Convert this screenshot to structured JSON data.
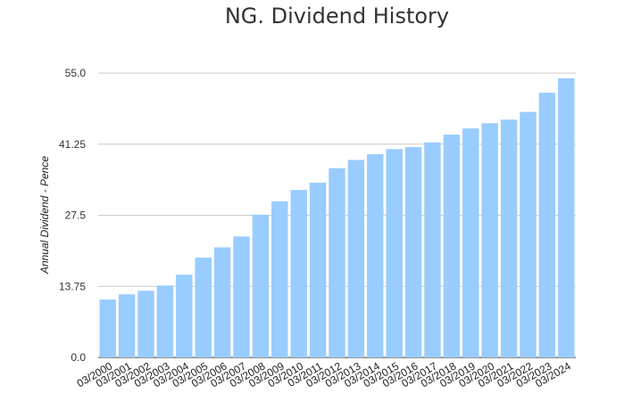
{
  "chart_data": {
    "type": "bar",
    "title": "NG. Dividend History",
    "xlabel": "",
    "ylabel": "Annual Dividend - Pence",
    "ylim": [
      0,
      55
    ],
    "yticks": [
      "0.0",
      "13.75",
      "27.5",
      "41.25",
      "55.0"
    ],
    "grid": true,
    "legend": "none",
    "bar_color": "#99ccff",
    "categories": [
      "03/2000",
      "03/2001",
      "03/2002",
      "03/2003",
      "03/2004",
      "03/2005",
      "03/2006",
      "03/2007",
      "03/2008",
      "03/2009",
      "03/2010",
      "03/2011",
      "03/2012",
      "03/2013",
      "03/2014",
      "03/2015",
      "03/2016",
      "03/2017",
      "03/2018",
      "03/2019",
      "03/2020",
      "03/2021",
      "03/2022",
      "03/2023",
      "03/2024"
    ],
    "values": [
      11.2,
      12.2,
      12.9,
      13.9,
      16.0,
      19.3,
      21.3,
      23.4,
      27.6,
      30.2,
      32.4,
      33.8,
      36.6,
      38.2,
      39.3,
      40.3,
      40.7,
      41.6,
      43.1,
      44.3,
      45.3,
      46.0,
      47.5,
      51.2,
      54.0
    ]
  }
}
